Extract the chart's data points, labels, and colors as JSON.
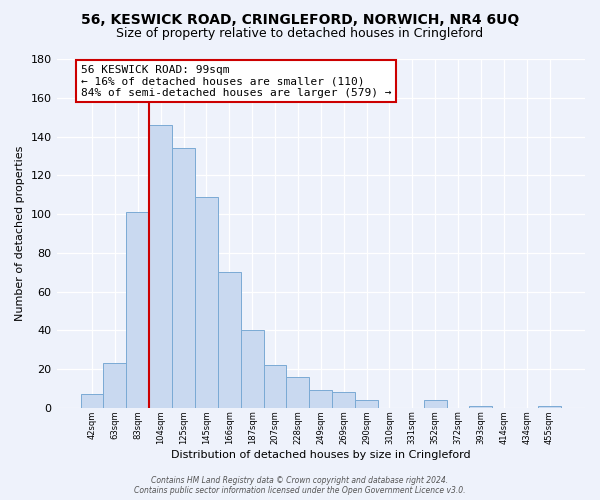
{
  "title_line1": "56, KESWICK ROAD, CRINGLEFORD, NORWICH, NR4 6UQ",
  "title_line2": "Size of property relative to detached houses in Cringleford",
  "xlabel": "Distribution of detached houses by size in Cringleford",
  "ylabel": "Number of detached properties",
  "bar_labels": [
    "42sqm",
    "63sqm",
    "83sqm",
    "104sqm",
    "125sqm",
    "145sqm",
    "166sqm",
    "187sqm",
    "207sqm",
    "228sqm",
    "249sqm",
    "269sqm",
    "290sqm",
    "310sqm",
    "331sqm",
    "352sqm",
    "372sqm",
    "393sqm",
    "414sqm",
    "434sqm",
    "455sqm"
  ],
  "bar_values": [
    7,
    23,
    101,
    146,
    134,
    109,
    70,
    40,
    22,
    16,
    9,
    8,
    4,
    0,
    0,
    4,
    0,
    1,
    0,
    0,
    1
  ],
  "bar_color": "#c9d9f0",
  "bar_edge_color": "#7aaad4",
  "ylim": [
    0,
    180
  ],
  "yticks": [
    0,
    20,
    40,
    60,
    80,
    100,
    120,
    140,
    160,
    180
  ],
  "vline_color": "#cc0000",
  "annotation_text": "56 KESWICK ROAD: 99sqm\n← 16% of detached houses are smaller (110)\n84% of semi-detached houses are larger (579) →",
  "annotation_box_color": "#ffffff",
  "annotation_box_edge": "#cc0000",
  "footer_line1": "Contains HM Land Registry data © Crown copyright and database right 2024.",
  "footer_line2": "Contains public sector information licensed under the Open Government Licence v3.0.",
  "bg_color": "#eef2fb",
  "title_fontsize": 10,
  "subtitle_fontsize": 9
}
